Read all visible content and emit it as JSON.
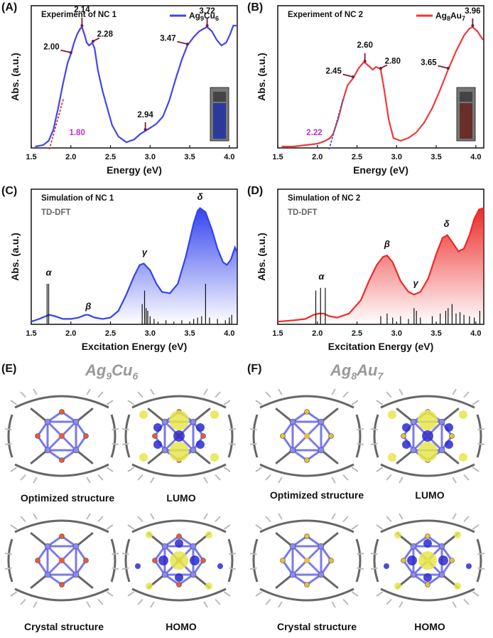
{
  "chart_data": [
    {
      "panel": "(A)",
      "type": "line",
      "title": "Experiment of NC 1",
      "legend": "Ag9Cu6",
      "xlabel": "Energy (eV)",
      "ylabel": "Abs. (a.u.)",
      "xlim": [
        1.5,
        4.1
      ],
      "ylim": [
        0,
        1
      ],
      "color": "#4444ee",
      "xticks": [
        "1.5",
        "2.0",
        "2.5",
        "3.0",
        "3.5",
        "4.0"
      ],
      "x": [
        1.55,
        1.65,
        1.72,
        1.78,
        1.84,
        1.9,
        1.96,
        2.0,
        2.04,
        2.08,
        2.12,
        2.14,
        2.17,
        2.2,
        2.23,
        2.27,
        2.3,
        2.34,
        2.4,
        2.46,
        2.52,
        2.6,
        2.7,
        2.8,
        2.88,
        2.94,
        3.0,
        3.08,
        3.16,
        3.24,
        3.32,
        3.4,
        3.47,
        3.55,
        3.62,
        3.68,
        3.72,
        3.78,
        3.84,
        3.9,
        3.96,
        4.01,
        4.05,
        4.09
      ],
      "y": [
        0.01,
        0.02,
        0.05,
        0.13,
        0.28,
        0.45,
        0.6,
        0.66,
        0.74,
        0.8,
        0.84,
        0.85,
        0.8,
        0.74,
        0.72,
        0.74,
        0.7,
        0.55,
        0.4,
        0.28,
        0.16,
        0.08,
        0.04,
        0.06,
        0.1,
        0.12,
        0.14,
        0.17,
        0.22,
        0.33,
        0.48,
        0.62,
        0.72,
        0.78,
        0.82,
        0.84,
        0.85,
        0.82,
        0.76,
        0.72,
        0.74,
        0.8,
        0.86,
        0.86
      ],
      "annotations": [
        {
          "x": 2.0,
          "y": 0.66,
          "text": "2.00"
        },
        {
          "x": 2.14,
          "y": 0.85,
          "text": "2.14"
        },
        {
          "x": 2.28,
          "y": 0.74,
          "text": "2.28"
        },
        {
          "x": 2.94,
          "y": 0.12,
          "text": "2.94"
        },
        {
          "x": 3.47,
          "y": 0.72,
          "text": "3.47"
        },
        {
          "x": 3.72,
          "y": 0.85,
          "text": "3.72"
        }
      ],
      "onset": {
        "x": 1.8,
        "text": "1.80",
        "color": "#dd3333",
        "label_color": "#bb33cc"
      }
    },
    {
      "panel": "(B)",
      "type": "line",
      "title": "Experiment of NC 2",
      "legend": "Ag8Au7",
      "xlabel": "Energy (eV)",
      "ylabel": "Abs. (a.u.)",
      "xlim": [
        1.5,
        4.1
      ],
      "ylim": [
        0,
        1
      ],
      "color": "#ee3a3a",
      "xticks": [
        "1.5",
        "2.0",
        "2.5",
        "3.0",
        "3.5",
        "4.0"
      ],
      "x": [
        1.55,
        1.7,
        1.85,
        2.0,
        2.1,
        2.16,
        2.2,
        2.26,
        2.32,
        2.38,
        2.45,
        2.52,
        2.58,
        2.6,
        2.64,
        2.7,
        2.74,
        2.78,
        2.8,
        2.84,
        2.9,
        2.96,
        3.05,
        3.15,
        3.25,
        3.35,
        3.45,
        3.55,
        3.65,
        3.75,
        3.85,
        3.92,
        3.96,
        4.02,
        4.09
      ],
      "y": [
        0.01,
        0.01,
        0.02,
        0.03,
        0.05,
        0.07,
        0.1,
        0.2,
        0.33,
        0.44,
        0.49,
        0.56,
        0.6,
        0.6,
        0.58,
        0.55,
        0.57,
        0.56,
        0.55,
        0.42,
        0.2,
        0.07,
        0.05,
        0.07,
        0.11,
        0.18,
        0.28,
        0.41,
        0.55,
        0.68,
        0.79,
        0.84,
        0.85,
        0.82,
        0.76
      ],
      "annotations": [
        {
          "x": 2.45,
          "y": 0.49,
          "text": "2.45"
        },
        {
          "x": 2.6,
          "y": 0.6,
          "text": "2.60"
        },
        {
          "x": 2.8,
          "y": 0.55,
          "text": "2.80"
        },
        {
          "x": 3.65,
          "y": 0.55,
          "text": "3.65"
        },
        {
          "x": 3.96,
          "y": 0.85,
          "text": "3.96"
        }
      ],
      "onset": {
        "x": 2.22,
        "text": "2.22",
        "color": "#3355cc",
        "label_color": "#bb33cc"
      }
    },
    {
      "panel": "(C)",
      "type": "area",
      "title": "Simulation of NC 1",
      "subtitle": "TD-DFT",
      "xlabel": "Excitation Energy (eV)",
      "ylabel": "Abs. (a.u.)",
      "xlim": [
        1.5,
        4.1
      ],
      "ylim": [
        0,
        1
      ],
      "color": "#3344ee",
      "xticks": [
        "1.5",
        "2.0",
        "2.5",
        "3.0",
        "3.5",
        "4.0"
      ],
      "x": [
        1.5,
        1.6,
        1.68,
        1.73,
        1.8,
        1.9,
        2.0,
        2.1,
        2.18,
        2.22,
        2.3,
        2.4,
        2.5,
        2.6,
        2.7,
        2.8,
        2.87,
        2.92,
        3.0,
        3.08,
        3.15,
        3.25,
        3.35,
        3.45,
        3.55,
        3.6,
        3.63,
        3.7,
        3.78,
        3.85,
        3.92,
        3.97,
        4.02,
        4.07,
        4.1
      ],
      "y": [
        0.02,
        0.04,
        0.06,
        0.07,
        0.06,
        0.04,
        0.04,
        0.05,
        0.07,
        0.07,
        0.05,
        0.04,
        0.05,
        0.1,
        0.22,
        0.36,
        0.44,
        0.45,
        0.4,
        0.3,
        0.24,
        0.23,
        0.3,
        0.5,
        0.75,
        0.84,
        0.86,
        0.83,
        0.7,
        0.56,
        0.46,
        0.44,
        0.48,
        0.57,
        0.53
      ],
      "sticks": [
        [
          1.7,
          0.3
        ],
        [
          1.72,
          0.3
        ],
        [
          2.93,
          0.25
        ],
        [
          2.9,
          0.15
        ],
        [
          2.95,
          0.12
        ],
        [
          2.97,
          0.1
        ],
        [
          3.0,
          0.06
        ],
        [
          3.05,
          0.04
        ],
        [
          3.1,
          0.02
        ],
        [
          3.2,
          0.03
        ],
        [
          3.3,
          0.02
        ],
        [
          3.4,
          0.03
        ],
        [
          3.55,
          0.04
        ],
        [
          3.6,
          0.05
        ],
        [
          3.65,
          0.06
        ],
        [
          3.7,
          0.3
        ],
        [
          3.75,
          0.05
        ],
        [
          3.85,
          0.04
        ],
        [
          3.95,
          0.03
        ],
        [
          4.0,
          0.05
        ],
        [
          4.03,
          0.07
        ]
      ],
      "greek": [
        {
          "x": 1.72,
          "y": 0.34,
          "text": "α"
        },
        {
          "x": 2.22,
          "y": 0.09,
          "text": "β"
        },
        {
          "x": 2.93,
          "y": 0.49,
          "text": "γ"
        },
        {
          "x": 3.63,
          "y": 0.9,
          "text": "δ"
        }
      ]
    },
    {
      "panel": "(D)",
      "type": "area",
      "title": "Simulation of NC 2",
      "subtitle": "TD-DFT",
      "xlabel": "Excitation Energy (eV)",
      "ylabel": "Abs. (a.u.)",
      "xlim": [
        1.5,
        4.1
      ],
      "ylim": [
        0,
        1
      ],
      "color": "#ee2a2a",
      "xticks": [
        "1.5",
        "2.0",
        "2.5",
        "3.0",
        "3.5",
        "4.0"
      ],
      "x": [
        1.5,
        1.7,
        1.85,
        1.95,
        2.02,
        2.08,
        2.15,
        2.25,
        2.4,
        2.55,
        2.65,
        2.75,
        2.83,
        2.88,
        2.95,
        3.05,
        3.15,
        3.22,
        3.3,
        3.4,
        3.5,
        3.58,
        3.64,
        3.7,
        3.78,
        3.85,
        3.92,
        3.98,
        4.04,
        4.1
      ],
      "y": [
        0.02,
        0.03,
        0.04,
        0.07,
        0.08,
        0.08,
        0.06,
        0.05,
        0.08,
        0.18,
        0.32,
        0.44,
        0.5,
        0.51,
        0.46,
        0.32,
        0.24,
        0.22,
        0.24,
        0.34,
        0.52,
        0.64,
        0.66,
        0.61,
        0.54,
        0.56,
        0.66,
        0.78,
        0.85,
        0.86
      ],
      "sticks": [
        [
          1.98,
          0.25
        ],
        [
          2.04,
          0.27
        ],
        [
          2.1,
          0.27
        ],
        [
          2.8,
          0.06
        ],
        [
          2.88,
          0.08
        ],
        [
          2.95,
          0.05
        ],
        [
          3.05,
          0.06
        ],
        [
          3.15,
          0.04
        ],
        [
          3.22,
          0.12
        ],
        [
          3.25,
          0.1
        ],
        [
          3.3,
          0.05
        ],
        [
          3.45,
          0.06
        ],
        [
          3.55,
          0.08
        ],
        [
          3.62,
          0.1
        ],
        [
          3.65,
          0.12
        ],
        [
          3.7,
          0.15
        ],
        [
          3.75,
          0.08
        ],
        [
          3.8,
          0.09
        ],
        [
          3.85,
          0.07
        ],
        [
          3.92,
          0.06
        ],
        [
          3.98,
          0.05
        ],
        [
          4.05,
          0.1
        ]
      ],
      "greek": [
        {
          "x": 2.05,
          "y": 0.31,
          "text": "α"
        },
        {
          "x": 2.88,
          "y": 0.55,
          "text": "β"
        },
        {
          "x": 3.24,
          "y": 0.26,
          "text": "γ"
        },
        {
          "x": 3.63,
          "y": 0.7,
          "text": "δ"
        }
      ]
    }
  ],
  "panels": {
    "E": {
      "label": "(E)",
      "title_base": "Ag",
      "title_n1": "9",
      "title_mid": "Cu",
      "title_n2": "6",
      "captions": [
        "Optimized structure",
        "LUMO",
        "Crystal structure",
        "HOMO"
      ],
      "metal_color": "#e85a3a"
    },
    "F": {
      "label": "(F)",
      "title_base": "Ag",
      "title_n1": "8",
      "title_mid": "Au",
      "title_n2": "7",
      "captions": [
        "Optimized structure",
        "LUMO",
        "Crystal structure",
        "HOMO"
      ],
      "metal_color": "#e8c03a"
    }
  },
  "legend_labels": {
    "A": {
      "base": "Ag",
      "n1": "9",
      "mid": "Cu",
      "n2": "6"
    },
    "B": {
      "base": "Ag",
      "n1": "8",
      "mid": "Au",
      "n2": "7"
    }
  }
}
